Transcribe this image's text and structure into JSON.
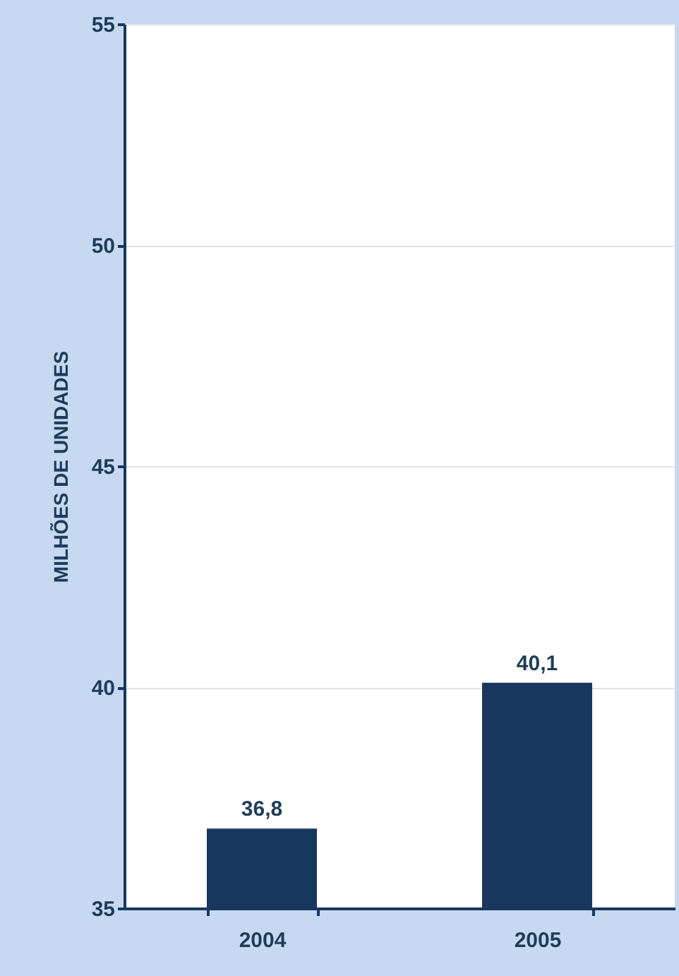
{
  "chart_data": {
    "type": "bar",
    "ylabel": "MILHÕES DE UNIDADES",
    "categories": [
      "2004",
      "2005"
    ],
    "values": [
      36.8,
      40.1
    ],
    "value_labels": [
      "36,8",
      "40,1"
    ],
    "color": "#17375e",
    "ylim": [
      35,
      55
    ],
    "yticks": [
      35,
      40,
      45,
      50,
      55
    ],
    "grid": "y"
  }
}
